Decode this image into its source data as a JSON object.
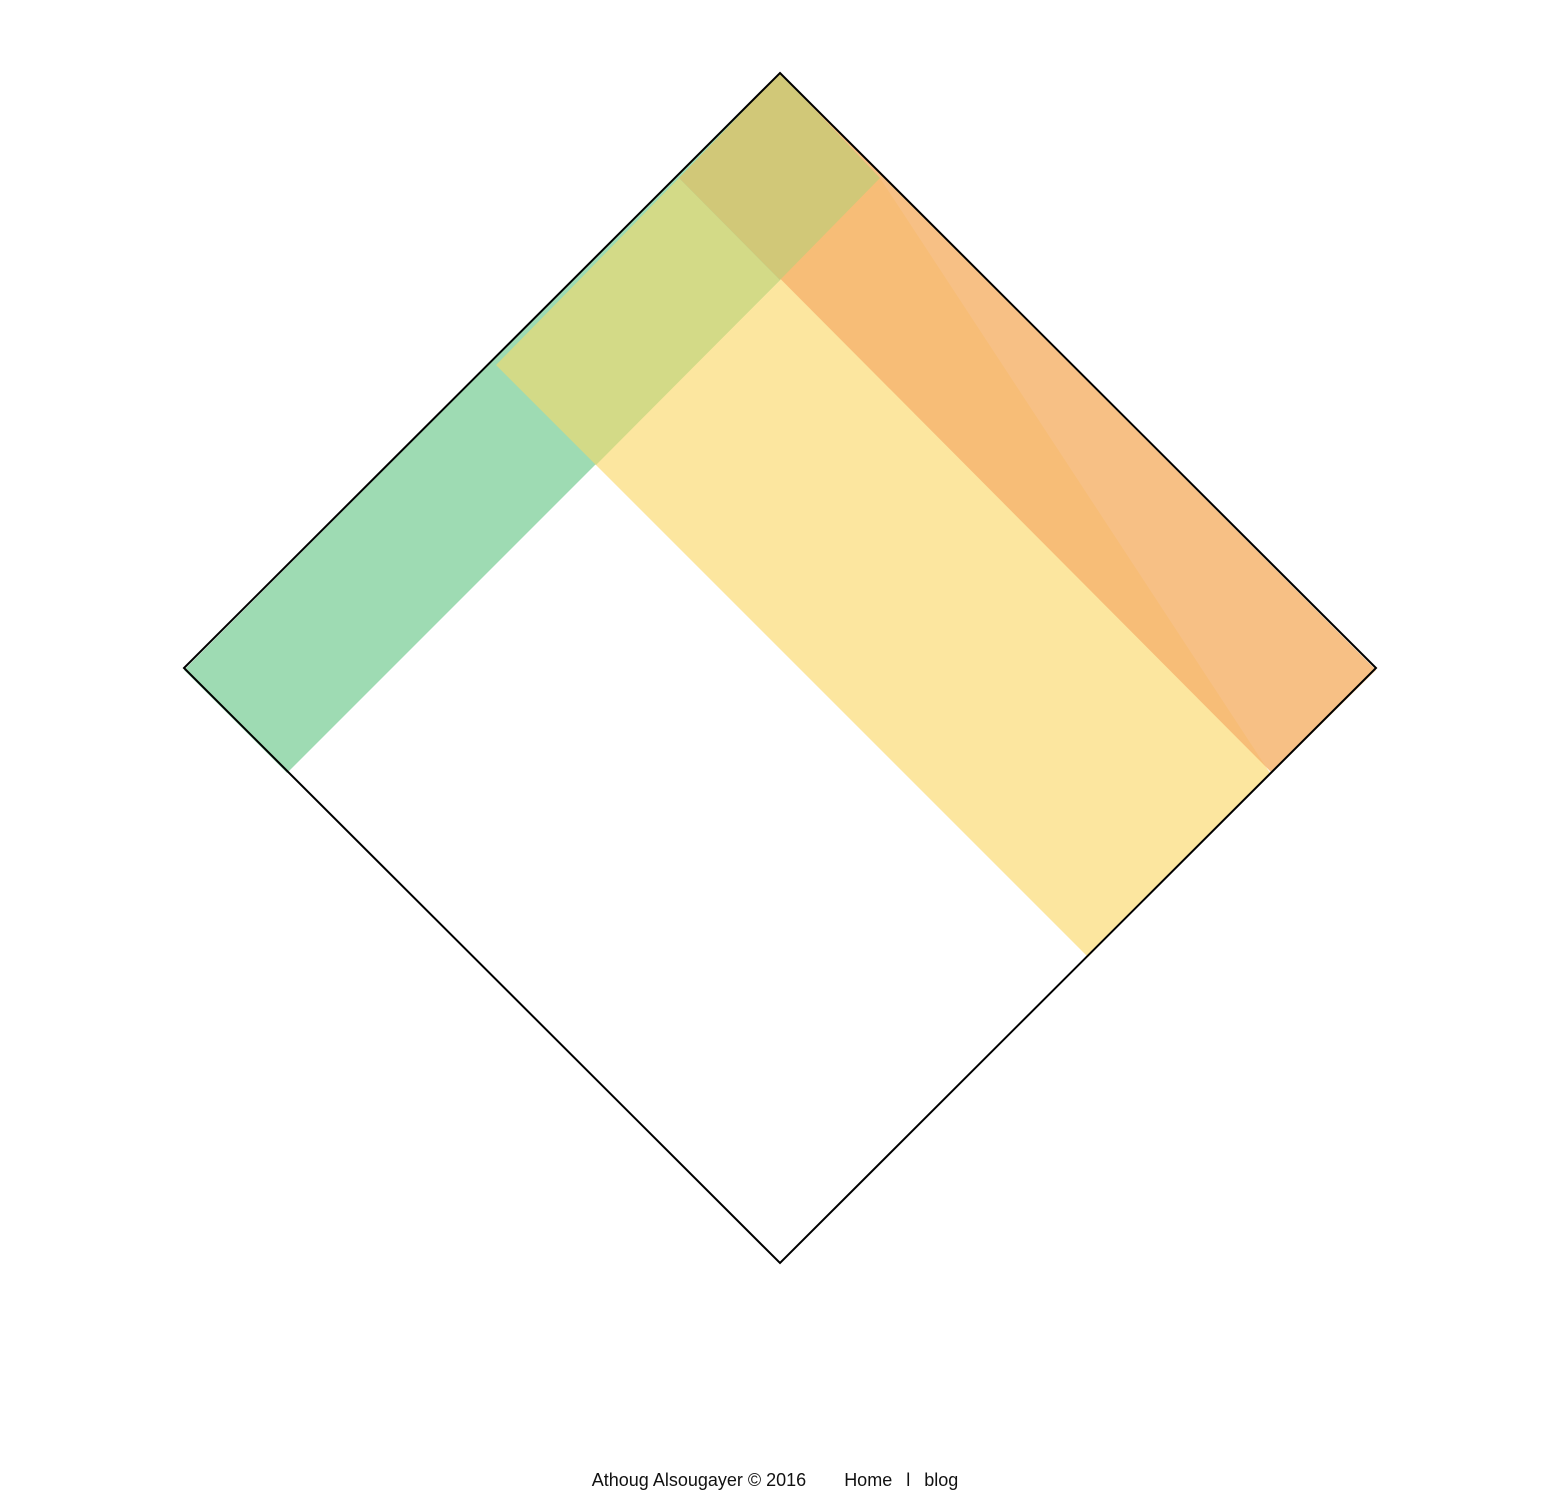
{
  "colors": {
    "background": "#ffffff",
    "outline": "#000000",
    "green_band": "#8dd5a6",
    "orange_band": "#f6b570",
    "yellow_band": "#fbe28e"
  },
  "footer": {
    "copyright": "Athoug Alsougayer © 2016",
    "links": [
      {
        "label": "Home"
      },
      {
        "label": "blog"
      }
    ],
    "separator": "l"
  }
}
